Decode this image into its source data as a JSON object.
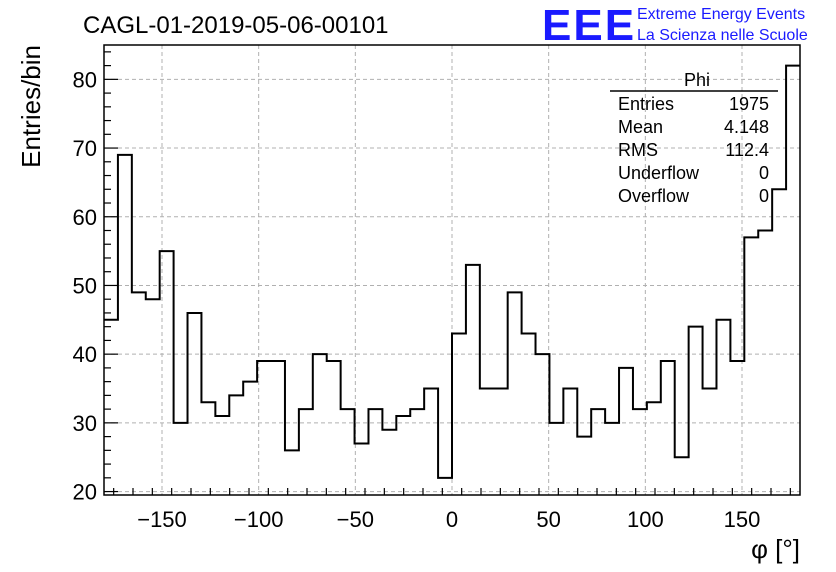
{
  "chart_data": {
    "type": "histogram",
    "title": "CAGL-01-2019-05-06-00101",
    "xlabel": "φ [°]",
    "ylabel": "Entries/bin",
    "xlim": [
      -180,
      180
    ],
    "ylim": [
      19.5,
      85
    ],
    "grid": true,
    "x_ticks": [
      -150,
      -100,
      -50,
      0,
      50,
      100,
      150
    ],
    "x_tick_labels": [
      "−150",
      "−100",
      "−50",
      "0",
      "50",
      "100",
      "150"
    ],
    "y_ticks": [
      20,
      30,
      40,
      50,
      60,
      70,
      80
    ],
    "y_tick_labels": [
      "20",
      "30",
      "40",
      "50",
      "60",
      "70",
      "80"
    ],
    "bin_edges_start": -180,
    "bin_width": 7.2,
    "values": [
      45,
      69,
      49,
      48,
      55,
      30,
      46,
      33,
      31,
      34,
      36,
      39,
      39,
      26,
      32,
      40,
      39,
      32,
      27,
      32,
      29,
      31,
      32,
      35,
      22,
      43,
      53,
      35,
      35,
      49,
      43,
      40,
      30,
      35,
      28,
      32,
      30,
      38,
      32,
      33,
      39,
      25,
      44,
      35,
      45,
      39,
      57,
      58,
      64,
      82
    ],
    "stats": {
      "name": "Phi",
      "rows": [
        {
          "label": "Entries",
          "value": "1975"
        },
        {
          "label": "Mean",
          "value": "4.148"
        },
        {
          "label": "RMS",
          "value": "112.4"
        },
        {
          "label": "Underflow",
          "value": "0"
        },
        {
          "label": "Overflow",
          "value": "0"
        }
      ]
    }
  },
  "logo": {
    "mark": "EEE",
    "line1": "Extreme Energy Events",
    "line2": "La Scienza nelle Scuole",
    "color": "#1a1aff"
  },
  "colors": {
    "line": "#000000",
    "grid": "#b0b0b0"
  }
}
